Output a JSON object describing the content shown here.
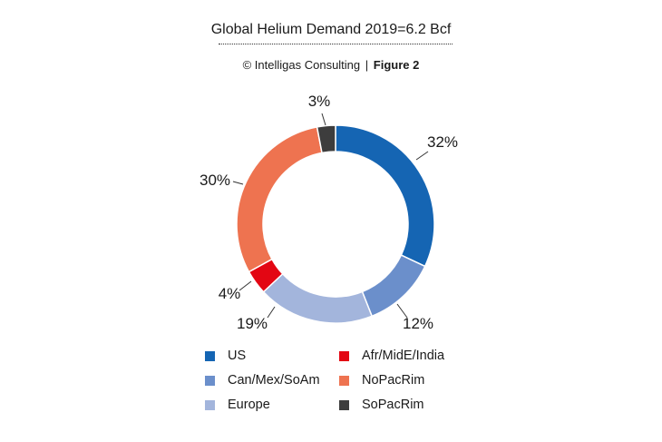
{
  "title": "Global Helium Demand 2019=6.2 Bcf",
  "credit": {
    "source": "© Intelligas Consulting",
    "separator": "|",
    "figure": "Figure 2"
  },
  "chart_data": {
    "type": "pie",
    "style": "donut",
    "title": "Global Helium Demand 2019=6.2 Bcf",
    "categories": [
      "US",
      "Can/Mex/SoAm",
      "Europe",
      "Afr/MidE/India",
      "NoPacRim",
      "SoPacRim"
    ],
    "values": [
      32,
      12,
      19,
      4,
      30,
      3
    ],
    "labels": [
      "32%",
      "12%",
      "19%",
      "4%",
      "30%",
      "3%"
    ],
    "colors": [
      "#1565b3",
      "#6b8fcb",
      "#a3b5dc",
      "#e30613",
      "#ee7350",
      "#3d3d3d"
    ],
    "legend_position": "bottom"
  },
  "legend": [
    {
      "label": "US",
      "color": "#1565b3"
    },
    {
      "label": "Can/Mex/SoAm",
      "color": "#6b8fcb"
    },
    {
      "label": "Europe",
      "color": "#a3b5dc"
    },
    {
      "label": "Afr/MidE/India",
      "color": "#e30613"
    },
    {
      "label": "NoPacRim",
      "color": "#ee7350"
    },
    {
      "label": "SoPacRim",
      "color": "#3d3d3d"
    }
  ]
}
